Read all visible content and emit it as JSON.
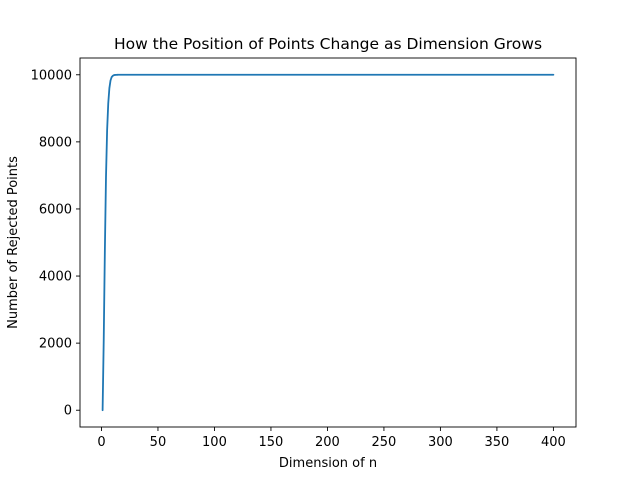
{
  "chart_data": {
    "type": "line",
    "title": "How the Position of Points Change as Dimension Grows",
    "xlabel": "Dimension of n",
    "ylabel": "Number of Rejected Points",
    "xlim": [
      -19,
      420
    ],
    "ylim": [
      -500,
      10500
    ],
    "xticks": [
      0,
      50,
      100,
      150,
      200,
      250,
      300,
      350,
      400
    ],
    "yticks": [
      0,
      2000,
      4000,
      6000,
      8000,
      10000
    ],
    "grid": false,
    "legend": "none",
    "series": [
      {
        "color": "#1f77b4",
        "x": [
          1,
          2,
          3,
          4,
          5,
          6,
          7,
          8,
          9,
          10,
          11,
          12,
          13,
          14,
          15,
          16,
          18,
          20,
          25,
          50,
          100,
          150,
          200,
          250,
          300,
          350,
          400
        ],
        "values": [
          0,
          2100,
          4750,
          6950,
          8350,
          9150,
          9600,
          9830,
          9930,
          9970,
          9988,
          9995,
          9998,
          9999,
          10000,
          10000,
          10000,
          10000,
          10000,
          10000,
          10000,
          10000,
          10000,
          10000,
          10000,
          10000,
          10000
        ]
      }
    ]
  }
}
